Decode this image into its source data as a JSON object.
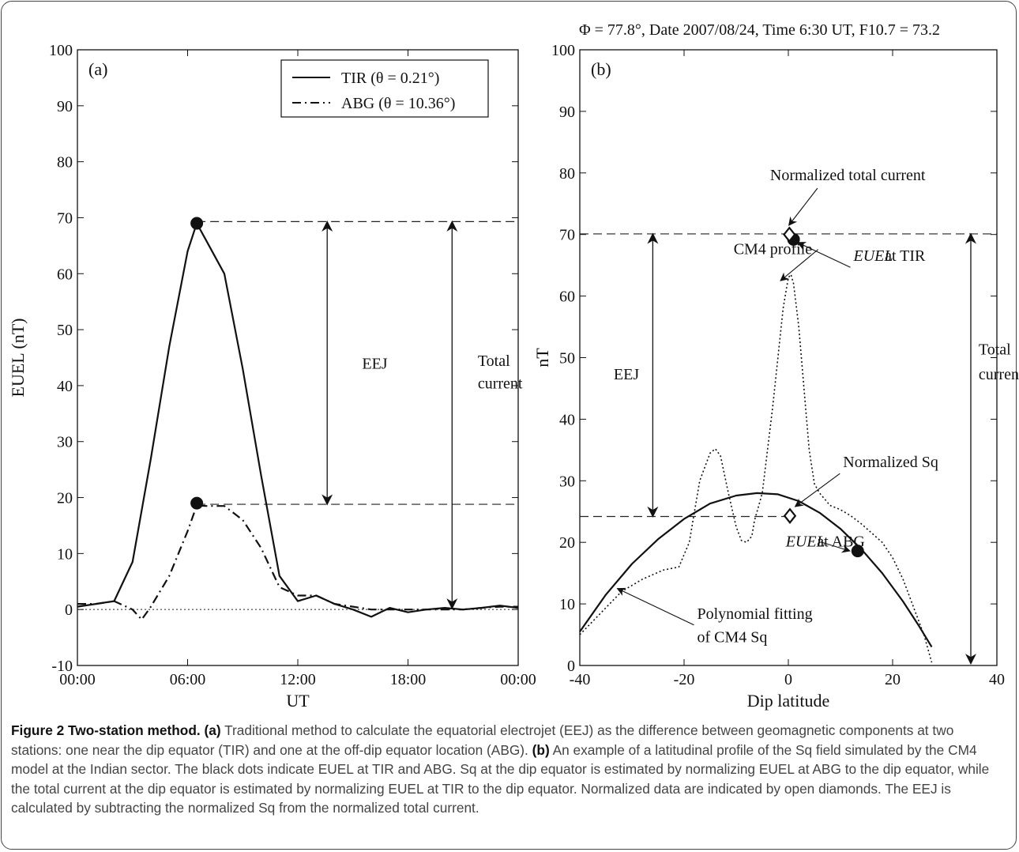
{
  "figure": {
    "header": "Φ = 77.8°, Date 2007/08/24, Time 6:30 UT, F10.7 = 73.2",
    "caption": {
      "title": "Figure 2 Two-station method.",
      "label_a": "(a)",
      "text_a": "Traditional method to calculate the equatorial electrojet (EEJ) as the difference between geomagnetic components at two stations: one near the dip equator (TIR) and one at the off-dip equator location (ABG).",
      "label_b": "(b)",
      "text_b": "An example of a latitudinal profile of the Sq field simulated by the CM4 model at the Indian sector. The black dots indicate EUEL at TIR and ABG. Sq at the dip equator is estimated by normalizing EUEL at ABG to the dip equator, while the total current at the dip equator is estimated by normalizing EUEL at TIR to the dip equator. Normalized data are indicated by open diamonds. The EEJ is calculated by subtracting the normalized Sq from the normalized total current."
    }
  },
  "chart_data": [
    {
      "type": "line",
      "panel_label": "(a)",
      "xlabel": "UT",
      "ylabel": "EUEL (nT)",
      "xlim": [
        0,
        24
      ],
      "ylim": [
        -10,
        100
      ],
      "x_tick_values": [
        0,
        6,
        12,
        18,
        24
      ],
      "x_tick_labels": [
        "00:00",
        "06:00",
        "12:00",
        "18:00",
        "00:00"
      ],
      "y_ticks": [
        -10,
        0,
        10,
        20,
        30,
        40,
        50,
        60,
        70,
        80,
        90,
        100
      ],
      "legend_position": "top-right",
      "series": [
        {
          "name": "TIR (θ = 0.21°)",
          "style": "solid",
          "color": "#111111",
          "x": [
            0,
            1,
            2,
            3,
            4,
            5,
            6,
            6.5,
            7,
            8,
            9,
            10,
            11,
            12,
            13,
            14,
            15,
            16,
            17,
            18,
            19,
            20,
            21,
            22,
            23,
            24
          ],
          "y": [
            0.5,
            1,
            1.5,
            8.5,
            27,
            47,
            64,
            69,
            66,
            60,
            43,
            24,
            6,
            1.5,
            2.5,
            1,
            0,
            -1.3,
            0.3,
            -0.5,
            0,
            0.3,
            0,
            0.3,
            0.7,
            0.3
          ]
        },
        {
          "name": "ABG (θ = 10.36°)",
          "style": "dashdot",
          "color": "#111111",
          "x": [
            0,
            1,
            2,
            3,
            3.5,
            4,
            5,
            6,
            6.5,
            7,
            8,
            9,
            10,
            11,
            12,
            13,
            14,
            15,
            16,
            17,
            18,
            19,
            20,
            21,
            22,
            23,
            24
          ],
          "y": [
            1,
            1,
            1.5,
            0,
            -1.8,
            0.5,
            6,
            14,
            18.6,
            18.5,
            18.5,
            16,
            11,
            4,
            2.5,
            2.5,
            1,
            0.5,
            0,
            0,
            0,
            0,
            0,
            0,
            0.3,
            0.5,
            0.5
          ]
        }
      ],
      "markers": [
        {
          "x": 6.5,
          "y": 69
        },
        {
          "x": 6.5,
          "y": 19
        }
      ],
      "reference_lines": [
        {
          "orientation": "horizontal",
          "y": 0,
          "style": "dotted",
          "x_from": 0,
          "x_to": 24
        },
        {
          "orientation": "horizontal",
          "y": 69.3,
          "style": "dashed",
          "x_from": 6.5,
          "x_to": 24
        },
        {
          "orientation": "horizontal",
          "y": 18.8,
          "style": "dashed",
          "x_from": 6.5,
          "x_to": 24
        }
      ],
      "double_arrows": [
        {
          "label": "EEJ",
          "x": 13.6,
          "y_from": 18.8,
          "y_to": 69.3
        },
        {
          "label": "Total current",
          "x": 20.4,
          "y_from": 0.2,
          "y_to": 69.3
        }
      ],
      "annotations": [
        {
          "text": "EEJ",
          "x": 15.5,
          "y": 43
        },
        {
          "text": "Total",
          "x": 21.8,
          "y": 43.5
        },
        {
          "text": "current",
          "x": 21.8,
          "y": 39.5
        }
      ]
    },
    {
      "type": "line",
      "panel_label": "(b)",
      "xlabel": "Dip latitude",
      "ylabel": "nT",
      "xlim": [
        -40,
        40
      ],
      "ylim": [
        0,
        100
      ],
      "x_ticks": [
        -40,
        -20,
        0,
        20,
        40
      ],
      "y_ticks": [
        0,
        10,
        20,
        30,
        40,
        50,
        60,
        70,
        80,
        90,
        100
      ],
      "series": [
        {
          "name": "",
          "style": "solid",
          "color": "#111111",
          "x": [
            -40,
            -35,
            -30,
            -25,
            -20,
            -15,
            -10,
            -6,
            -2,
            2,
            6,
            10,
            14,
            18,
            22,
            25,
            27.5
          ],
          "y": [
            5.5,
            11.5,
            16.5,
            20.5,
            23.8,
            26.3,
            27.6,
            28,
            27.8,
            26.7,
            24.8,
            22.2,
            18.9,
            15,
            10.4,
            6.5,
            3
          ]
        },
        {
          "name": "",
          "style": "dotted",
          "color": "#111111",
          "x": [
            -40,
            -36,
            -32,
            -28,
            -24,
            -21,
            -19,
            -17,
            -15,
            -14,
            -13,
            -11.5,
            -10,
            -9,
            -8,
            -7,
            -6.5,
            -5,
            -4,
            -3,
            -2,
            -1,
            0,
            0.5,
            1,
            2,
            3,
            4,
            5,
            6,
            8,
            10,
            12,
            14,
            16,
            18,
            20,
            22,
            24,
            26,
            27.5
          ],
          "y": [
            5,
            8.5,
            12,
            14,
            15.5,
            16,
            20,
            30,
            34.5,
            35.2,
            34,
            28,
            22.5,
            20.3,
            20,
            21,
            23.5,
            28,
            35,
            42,
            50,
            58,
            63,
            63.5,
            62,
            55,
            45,
            35,
            29.5,
            28,
            26,
            25.3,
            24.3,
            23,
            21.5,
            20,
            17.5,
            14,
            9.5,
            5,
            0.5
          ]
        }
      ],
      "markers": [
        {
          "x": 1.0,
          "y": 69.2,
          "shape": "filled-circle"
        },
        {
          "x": 13.3,
          "y": 18.6,
          "shape": "filled-circle"
        },
        {
          "x": 0.2,
          "y": 70.0,
          "shape": "open-diamond"
        },
        {
          "x": 0.3,
          "y": 24.3,
          "shape": "open-diamond"
        }
      ],
      "reference_lines": [
        {
          "orientation": "horizontal",
          "y": 70.1,
          "style": "dashed",
          "x_from": -40,
          "x_to": 40
        },
        {
          "orientation": "horizontal",
          "y": 24.2,
          "style": "dashed",
          "x_from": -40,
          "x_to": 0
        }
      ],
      "double_arrows": [
        {
          "label": "EEJ",
          "x": -26,
          "y_from": 24.2,
          "y_to": 70.1
        },
        {
          "label": "Total current",
          "x": 35,
          "y_from": 0.3,
          "y_to": 70.1
        }
      ],
      "annotations": [
        {
          "text": "Normalized total current",
          "x": -3.5,
          "y": 78.8,
          "arrow_to_x": 0.1,
          "arrow_to_y": 71.5
        },
        {
          "text": "EUEL",
          "italic": true,
          "x": 12.5,
          "y": 65.7,
          "arrow_to_x": 1.8,
          "arrow_to_y": 68.7
        },
        {
          "text": "at TIR",
          "x": 18.5,
          "y": 65.7
        },
        {
          "text": "CM4 profile",
          "x": -10.5,
          "y": 66.8,
          "arrow_to_x": -1.5,
          "arrow_to_y": 62.5
        },
        {
          "text": "Total",
          "x": 36.5,
          "y": 50.5
        },
        {
          "text": "current",
          "x": 36.5,
          "y": 46.5
        },
        {
          "text": "EEJ",
          "x": -33.5,
          "y": 46.5
        },
        {
          "text": "Normalized Sq",
          "x": 10.5,
          "y": 32.2,
          "arrow_to_x": 1.3,
          "arrow_to_y": 25.8
        },
        {
          "text": "EUEL",
          "italic": true,
          "x": -0.5,
          "y": 19.3,
          "arrow_to_x": 11.8,
          "arrow_to_y": 18.6
        },
        {
          "text": "at ABG",
          "x": 5.5,
          "y": 19.3
        },
        {
          "text": "Polynomial fitting",
          "x": -17.5,
          "y": 7.6,
          "arrow_to_x": -32.8,
          "arrow_to_y": 12.5
        },
        {
          "text": "of CM4 Sq",
          "x": -17.5,
          "y": 3.8
        }
      ]
    }
  ]
}
